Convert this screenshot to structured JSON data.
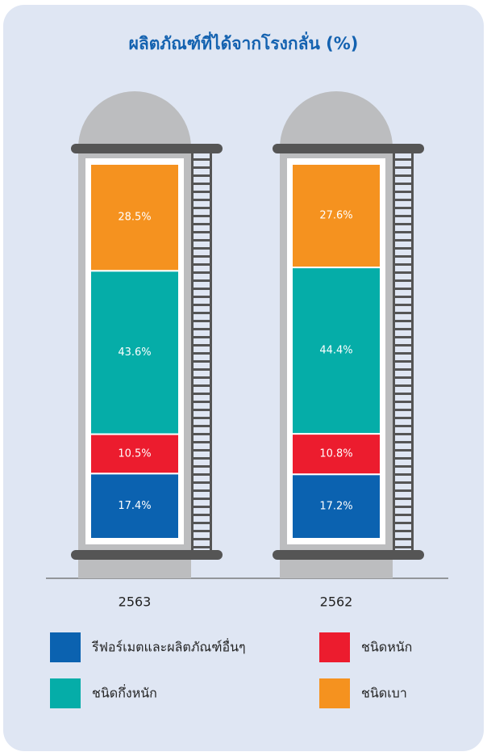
{
  "chart_data": {
    "type": "bar",
    "stacked": true,
    "title": "ผลิตภัณฑ์ที่ได้จากโรงกลั่น (%)",
    "categories": [
      "2563",
      "2562"
    ],
    "series": [
      {
        "name": "รีฟอร์เมตและผลิตภัณฑ์อื่นๆ",
        "color": "#0b62b0",
        "values": [
          17.4,
          17.2
        ],
        "value_labels": [
          "17.4%",
          "17.2%"
        ]
      },
      {
        "name": "ชนิดหนัก",
        "color": "#ec1c2e",
        "values": [
          10.5,
          10.8
        ],
        "value_labels": [
          "10.5%",
          "10.8%"
        ]
      },
      {
        "name": "ชนิดกึ่งหนัก",
        "color": "#05ada8",
        "values": [
          43.6,
          44.4
        ],
        "value_labels": [
          "43.6%",
          "44.4%"
        ]
      },
      {
        "name": "ชนิดเบา",
        "color": "#f5921f",
        "values": [
          28.5,
          27.6
        ],
        "value_labels": [
          "28.5%",
          "27.6%"
        ]
      }
    ]
  }
}
